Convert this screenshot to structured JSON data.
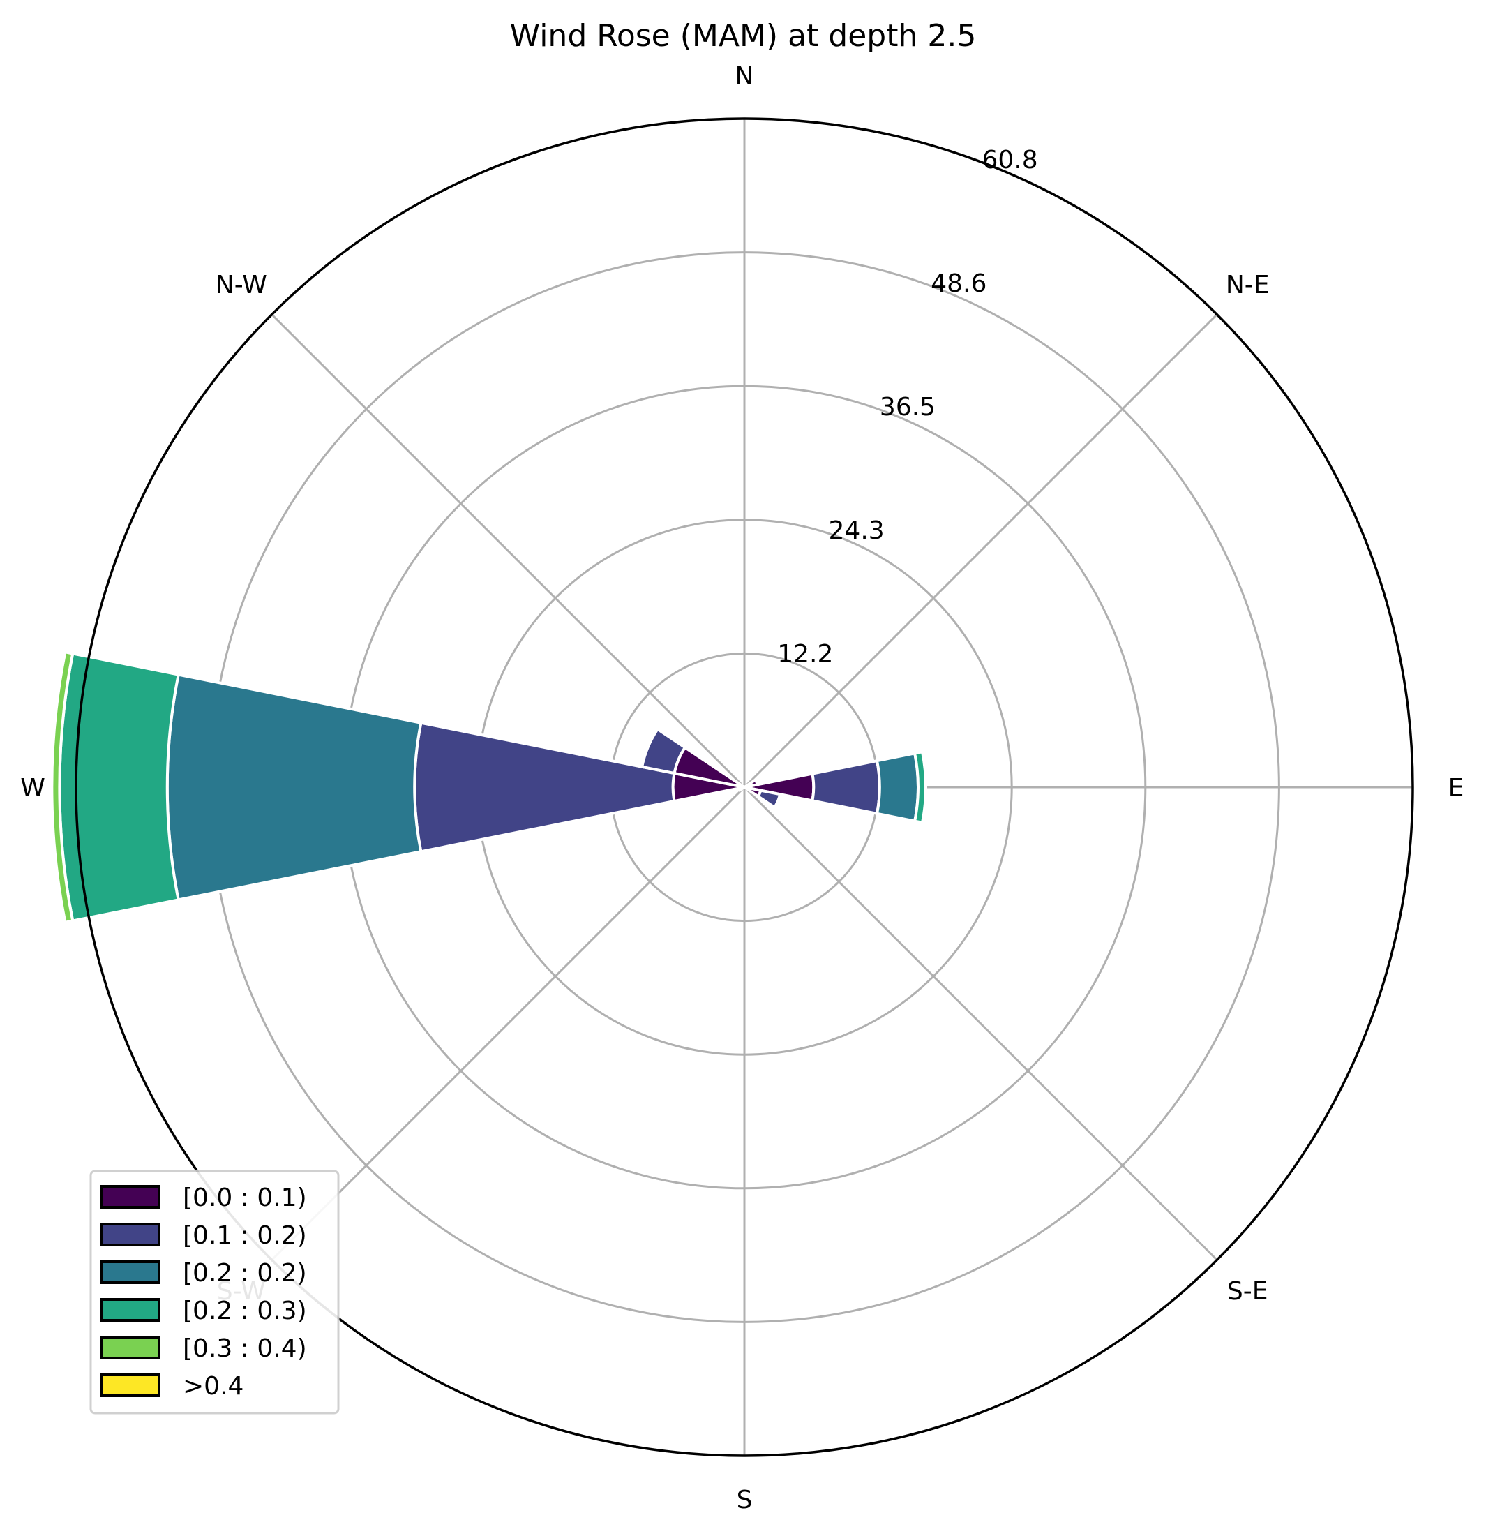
{
  "chart_data": {
    "type": "windrose",
    "title": "Wind Rose (MAM) at depth 2.5",
    "directions": [
      "N",
      "N-E",
      "E",
      "S-E",
      "S",
      "S-W",
      "W",
      "N-W"
    ],
    "radial_ticks": [
      "12.2",
      "24.3",
      "36.5",
      "48.6",
      "60.8"
    ],
    "rmax": 60.8,
    "grid": true,
    "legend_position": "lower-left",
    "bins": [
      {
        "label": "[0.0 : 0.1)",
        "color": "#440154"
      },
      {
        "label": "[0.1 : 0.2)",
        "color": "#414487"
      },
      {
        "label": "[0.2 : 0.2)",
        "color": "#2a788e"
      },
      {
        "label": "[0.2 : 0.3)",
        "color": "#22a884"
      },
      {
        "label": "[0.3 : 0.4)",
        "color": "#7ad151"
      },
      {
        "label": ">0.4",
        "color": "#fde725"
      }
    ],
    "sectors": [
      {
        "direction_deg": 270,
        "cumulative": [
          6.5,
          30.0,
          52.5,
          62.3,
          63.0,
          63.0
        ]
      },
      {
        "direction_deg": 292.5,
        "cumulative": [
          6.5,
          9.5,
          9.5,
          9.5,
          9.5,
          9.5
        ]
      },
      {
        "direction_deg": 90,
        "cumulative": [
          6.3,
          12.3,
          15.8,
          16.5,
          16.5,
          16.5
        ]
      },
      {
        "direction_deg": 112.5,
        "cumulative": [
          1.5,
          3.3,
          3.3,
          3.3,
          3.3,
          3.3
        ]
      },
      {
        "direction_deg": 67.5,
        "cumulative": [
          1.2,
          1.2,
          1.2,
          1.2,
          1.2,
          1.2
        ]
      },
      {
        "direction_deg": 247.5,
        "cumulative": [
          0.5,
          0.5,
          0.5,
          0.5,
          0.5,
          0.5
        ]
      }
    ],
    "sector_width_deg": 22.5
  }
}
